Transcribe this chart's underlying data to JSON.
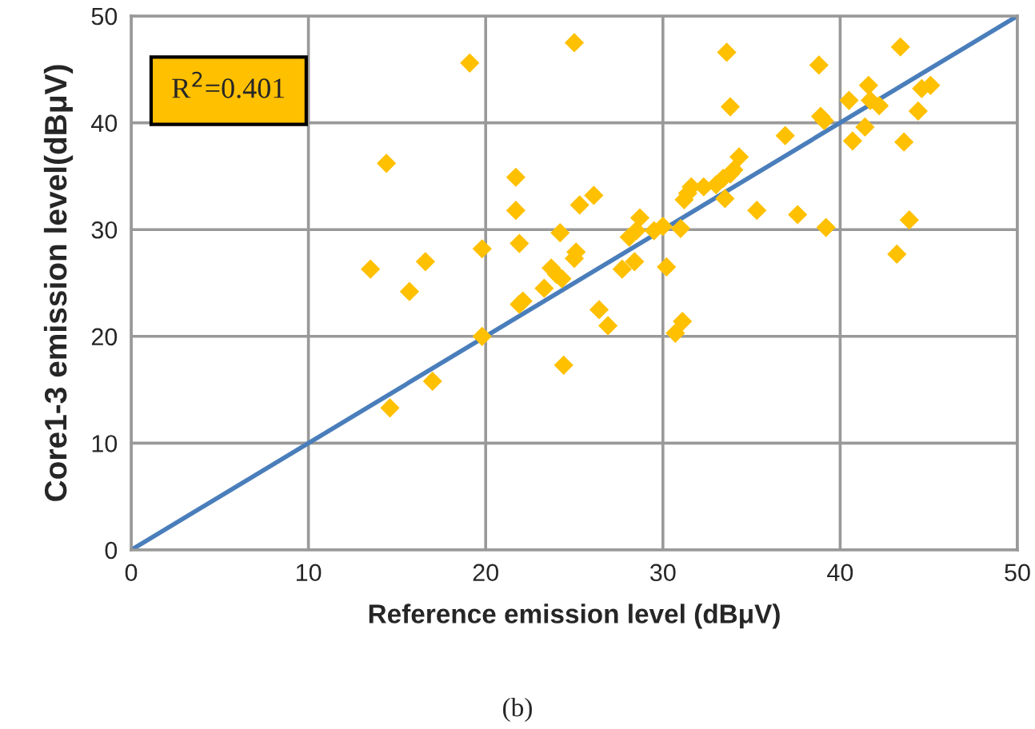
{
  "chart_data": {
    "type": "scatter",
    "xlabel": "Reference emission level (dBμV)",
    "ylabel": "Core1-3 emission level(dBμV)",
    "xlim": [
      0,
      50
    ],
    "ylim": [
      0,
      50
    ],
    "xticks": [
      0,
      10,
      20,
      30,
      40,
      50
    ],
    "yticks": [
      0,
      10,
      20,
      30,
      40,
      50
    ],
    "grid": true,
    "series": [
      {
        "marker": "diamond",
        "color": "#ffc000",
        "x": [
          19.1,
          25,
          14.4,
          13.5,
          15.7,
          16.6,
          17,
          14.6,
          19.8,
          19.8,
          21.7,
          21.7,
          21.9,
          21.9,
          22.1,
          23.3,
          23.7,
          24,
          24.2,
          24.3,
          24.4,
          25,
          25.1,
          25.3,
          26.1,
          26.4,
          26.9,
          27.7,
          28.1,
          28.4,
          28.5,
          28.7,
          29.5,
          30,
          30.2,
          30.7,
          31.1,
          31,
          31.2,
          31.4,
          31.6,
          32.3,
          33,
          33.4,
          33.5,
          33.8,
          34,
          34.3,
          33.6,
          33.8,
          35.3,
          36.9,
          37.6,
          38.8,
          38.9,
          39.1,
          39.2,
          40.5,
          40.7,
          41.4,
          41.6,
          41.7,
          42.2,
          43.2,
          43.4,
          43.6,
          43.9,
          44.4,
          44.6,
          45.1
        ],
        "values": [
          45.6,
          47.5,
          36.2,
          26.3,
          24.2,
          27,
          15.8,
          13.3,
          28.2,
          20,
          34.9,
          31.8,
          28.7,
          23,
          23.3,
          24.5,
          26.4,
          25.8,
          29.7,
          25.4,
          17.3,
          27.3,
          27.9,
          32.3,
          33.2,
          22.5,
          21,
          26.3,
          29.3,
          27,
          29.9,
          31.1,
          29.9,
          30.3,
          26.5,
          20.3,
          21.4,
          30.1,
          32.8,
          33.4,
          34,
          34,
          34.2,
          34.8,
          32.9,
          35.2,
          35.6,
          36.8,
          46.6,
          41.5,
          31.8,
          38.8,
          31.4,
          45.4,
          40.6,
          40.2,
          30.2,
          42.1,
          38.3,
          39.6,
          43.5,
          42.1,
          41.6,
          27.7,
          47.1,
          38.2,
          30.9,
          41.1,
          43.2,
          43.5
        ]
      },
      {
        "type": "line",
        "color": "#4a7ebb",
        "x": [
          0,
          50
        ],
        "values": [
          0,
          50
        ]
      }
    ],
    "annotations": [
      "R$^{2}$=0.401",
      "(b)"
    ]
  }
}
